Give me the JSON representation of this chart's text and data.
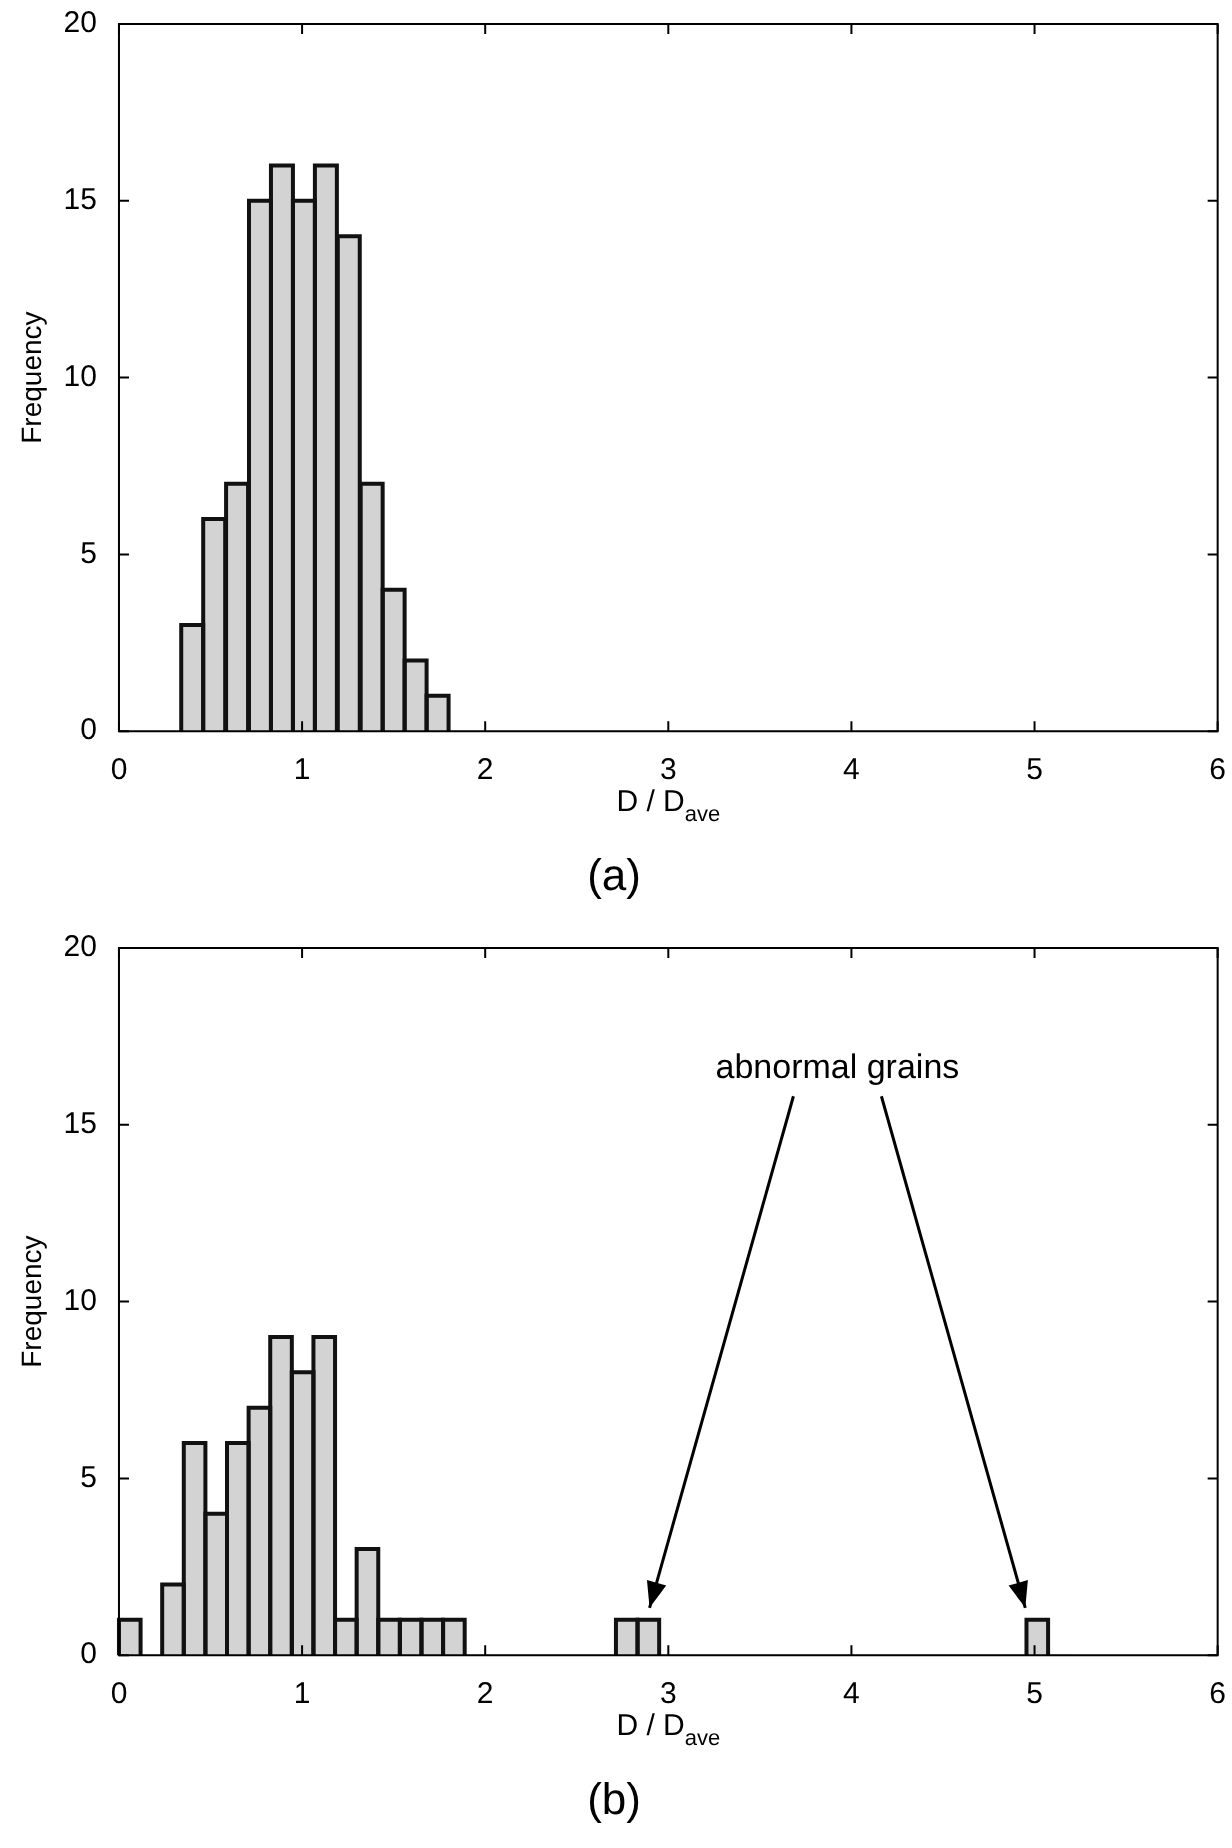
{
  "chart_data": [
    {
      "type": "histogram",
      "title": "(a)",
      "xlabel": "D / D$_{ave}$",
      "ylabel": "Frequency",
      "color": "#d3d3d3",
      "bins": [
        0.34,
        0.46,
        0.58,
        0.71,
        0.83,
        0.95,
        1.07,
        1.19,
        1.32,
        1.44,
        1.56,
        1.68,
        1.8
      ],
      "values": [
        3,
        6,
        7,
        15,
        16,
        15,
        16,
        14,
        7,
        4,
        2,
        1
      ],
      "xlim": [
        0,
        6
      ],
      "xticks": [
        0,
        1,
        2,
        3,
        4,
        5,
        6
      ],
      "ylim": [
        0,
        20
      ],
      "yticks": [
        0,
        5,
        10,
        15,
        20
      ]
    },
    {
      "type": "histogram",
      "title": "(b)",
      "xlabel": "D / D$_{ave}$",
      "ylabel": "Frequency",
      "color": "#d3d3d3",
      "bins": [
        0,
        0.118,
        0.236,
        0.354,
        0.472,
        0.59,
        0.708,
        0.826,
        0.944,
        1.062,
        1.18,
        1.298,
        1.416,
        1.534,
        1.652,
        1.77,
        1.888,
        2.006,
        2.124,
        2.242,
        2.36,
        2.478,
        2.596,
        2.714,
        2.832,
        2.95,
        3.068,
        3.186,
        3.304,
        3.422,
        3.54,
        3.658,
        3.776,
        3.894,
        4.012,
        4.13,
        4.248,
        4.366,
        4.484,
        4.602,
        4.72,
        4.838,
        4.956,
        5.074,
        5.192
      ],
      "values": [
        1,
        0,
        2,
        6,
        4,
        6,
        7,
        9,
        8,
        9,
        1,
        3,
        1,
        1,
        1,
        1,
        0,
        0,
        0,
        0,
        0,
        0,
        0,
        1,
        1,
        0,
        0,
        0,
        0,
        0,
        0,
        0,
        0,
        0,
        0,
        0,
        0,
        0,
        0,
        0,
        0,
        0,
        1,
        0
      ],
      "xlim": [
        0,
        6
      ],
      "xticks": [
        0,
        1,
        2,
        3,
        4,
        5,
        6
      ],
      "ylim": [
        0,
        20
      ],
      "yticks": [
        0,
        5,
        10,
        15,
        20
      ],
      "annotations": [
        "abnormal grains"
      ]
    }
  ]
}
